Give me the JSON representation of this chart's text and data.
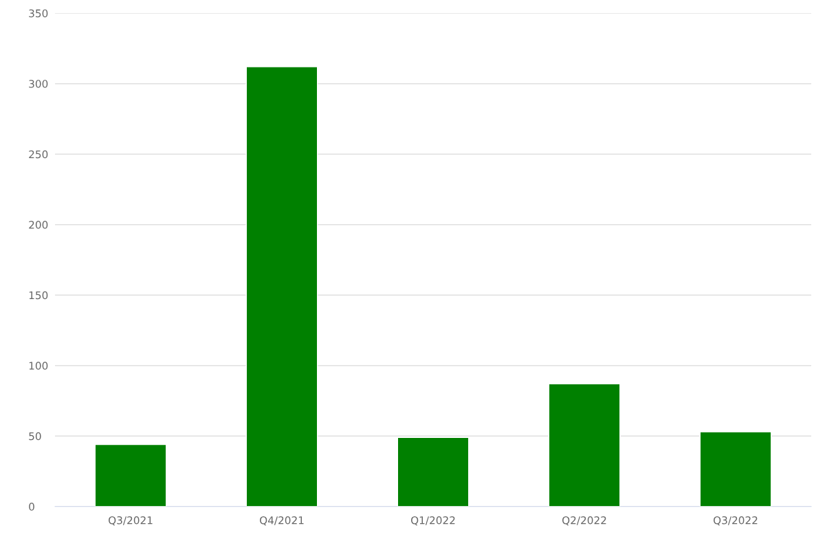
{
  "chart_data": {
    "type": "bar",
    "categories": [
      "Q3/2021",
      "Q4/2021",
      "Q1/2022",
      "Q2/2022",
      "Q3/2022"
    ],
    "values": [
      44,
      312,
      49,
      87,
      53
    ],
    "color": "#008000",
    "ylim": [
      0,
      350
    ],
    "yticks": [
      0,
      50,
      100,
      150,
      200,
      250,
      300,
      350
    ],
    "grid": "y"
  }
}
